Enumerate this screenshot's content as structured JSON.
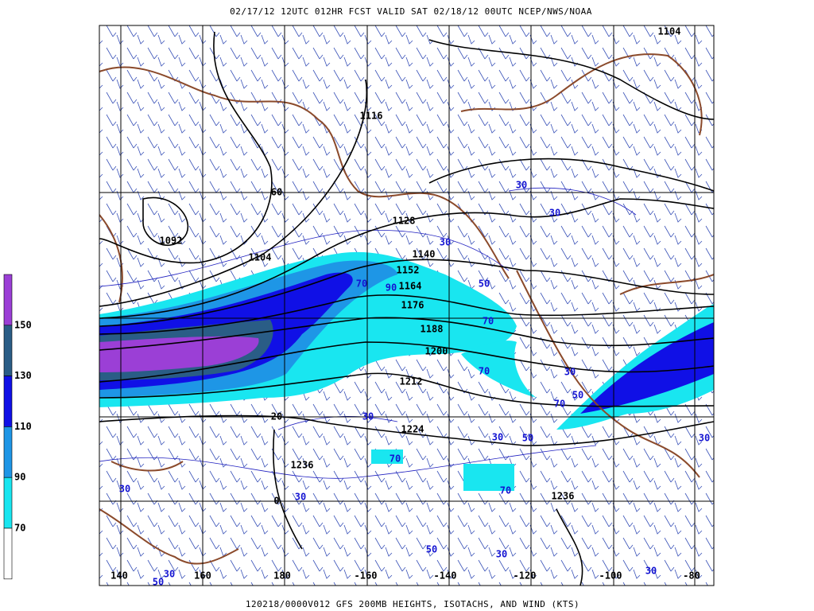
{
  "header": {
    "title": "02/17/12 12UTC  012HR  FCST VALID SAT 02/18/12 00UTC  NCEP/NWS/NOAA"
  },
  "footer": {
    "caption": "120218/0000V012 GFS 200MB HEIGHTS, ISOTACHS, AND WIND (KTS)"
  },
  "legend": {
    "labels": [
      "150",
      "130",
      "110",
      "90",
      "70"
    ],
    "colors": [
      "#9b3fd6",
      "#2a5d86",
      "#1010e6",
      "#1e96e6",
      "#19e6f0",
      "#ffffff"
    ]
  },
  "map": {
    "lon_labels": [
      "140",
      "160",
      "180",
      "-160",
      "-140",
      "-120",
      "-100",
      "-80"
    ],
    "lat_labels": [
      "60",
      "20",
      "0"
    ],
    "height_labels": [
      "1104",
      "1116",
      "1128",
      "1092",
      "1104",
      "1140",
      "1152",
      "1164",
      "1176",
      "1188",
      "1200",
      "1212",
      "1224",
      "1236",
      "1236"
    ],
    "isotach_labels": [
      "30",
      "30",
      "30",
      "50",
      "70",
      "90",
      "70",
      "70",
      "30",
      "50",
      "70",
      "30",
      "30",
      "50",
      "70",
      "70",
      "30",
      "30",
      "30",
      "50",
      "30",
      "30",
      "50",
      "30"
    ]
  }
}
